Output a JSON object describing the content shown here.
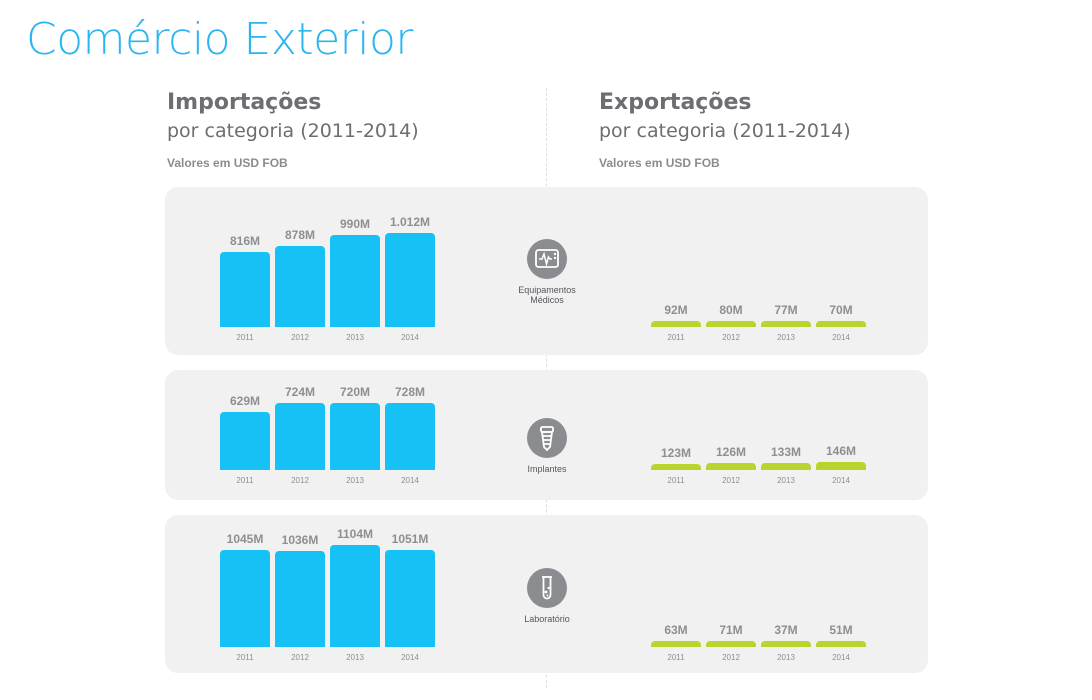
{
  "title": "Comércio Exterior",
  "imports_header": {
    "title": "Importações",
    "subtitle": "por categoria (2011-2014)",
    "note": "Valores em USD FOB"
  },
  "exports_header": {
    "title": "Exportações",
    "subtitle": "por categoria (2011-2014)",
    "note": "Valores em USD FOB"
  },
  "colors": {
    "title": "#29b6f0",
    "imports": "#16c2f5",
    "exports": "#b9d52d",
    "panel": "#f1f1f2",
    "icon": "#8b8c8f"
  },
  "chart_data": [
    {
      "type": "bar",
      "category": "Equipamentos Médicos",
      "icon": "monitor-icon",
      "years": [
        "2011",
        "2012",
        "2013",
        "2014"
      ],
      "imports": {
        "values": [
          816,
          878,
          990,
          1012
        ],
        "labels": [
          "816M",
          "878M",
          "990M",
          "1.012M"
        ]
      },
      "exports": {
        "values": [
          92,
          80,
          77,
          70
        ],
        "labels": [
          "92M",
          "80M",
          "77M",
          "70M"
        ]
      }
    },
    {
      "type": "bar",
      "category": "Implantes",
      "icon": "implant-icon",
      "years": [
        "2011",
        "2012",
        "2013",
        "2014"
      ],
      "imports": {
        "values": [
          629,
          724,
          720,
          728
        ],
        "labels": [
          "629M",
          "724M",
          "720M",
          "728M"
        ]
      },
      "exports": {
        "values": [
          123,
          126,
          133,
          146
        ],
        "labels": [
          "123M",
          "126M",
          "133M",
          "146M"
        ]
      }
    },
    {
      "type": "bar",
      "category": "Laboratório",
      "icon": "test-tube-icon",
      "years": [
        "2011",
        "2012",
        "2013",
        "2014"
      ],
      "imports": {
        "values": [
          1045,
          1036,
          1104,
          1051
        ],
        "labels": [
          "1045M",
          "1036M",
          "1104M",
          "1051M"
        ]
      },
      "exports": {
        "values": [
          63,
          71,
          37,
          51
        ],
        "labels": [
          "63M",
          "71M",
          "37M",
          "51M"
        ]
      }
    }
  ]
}
